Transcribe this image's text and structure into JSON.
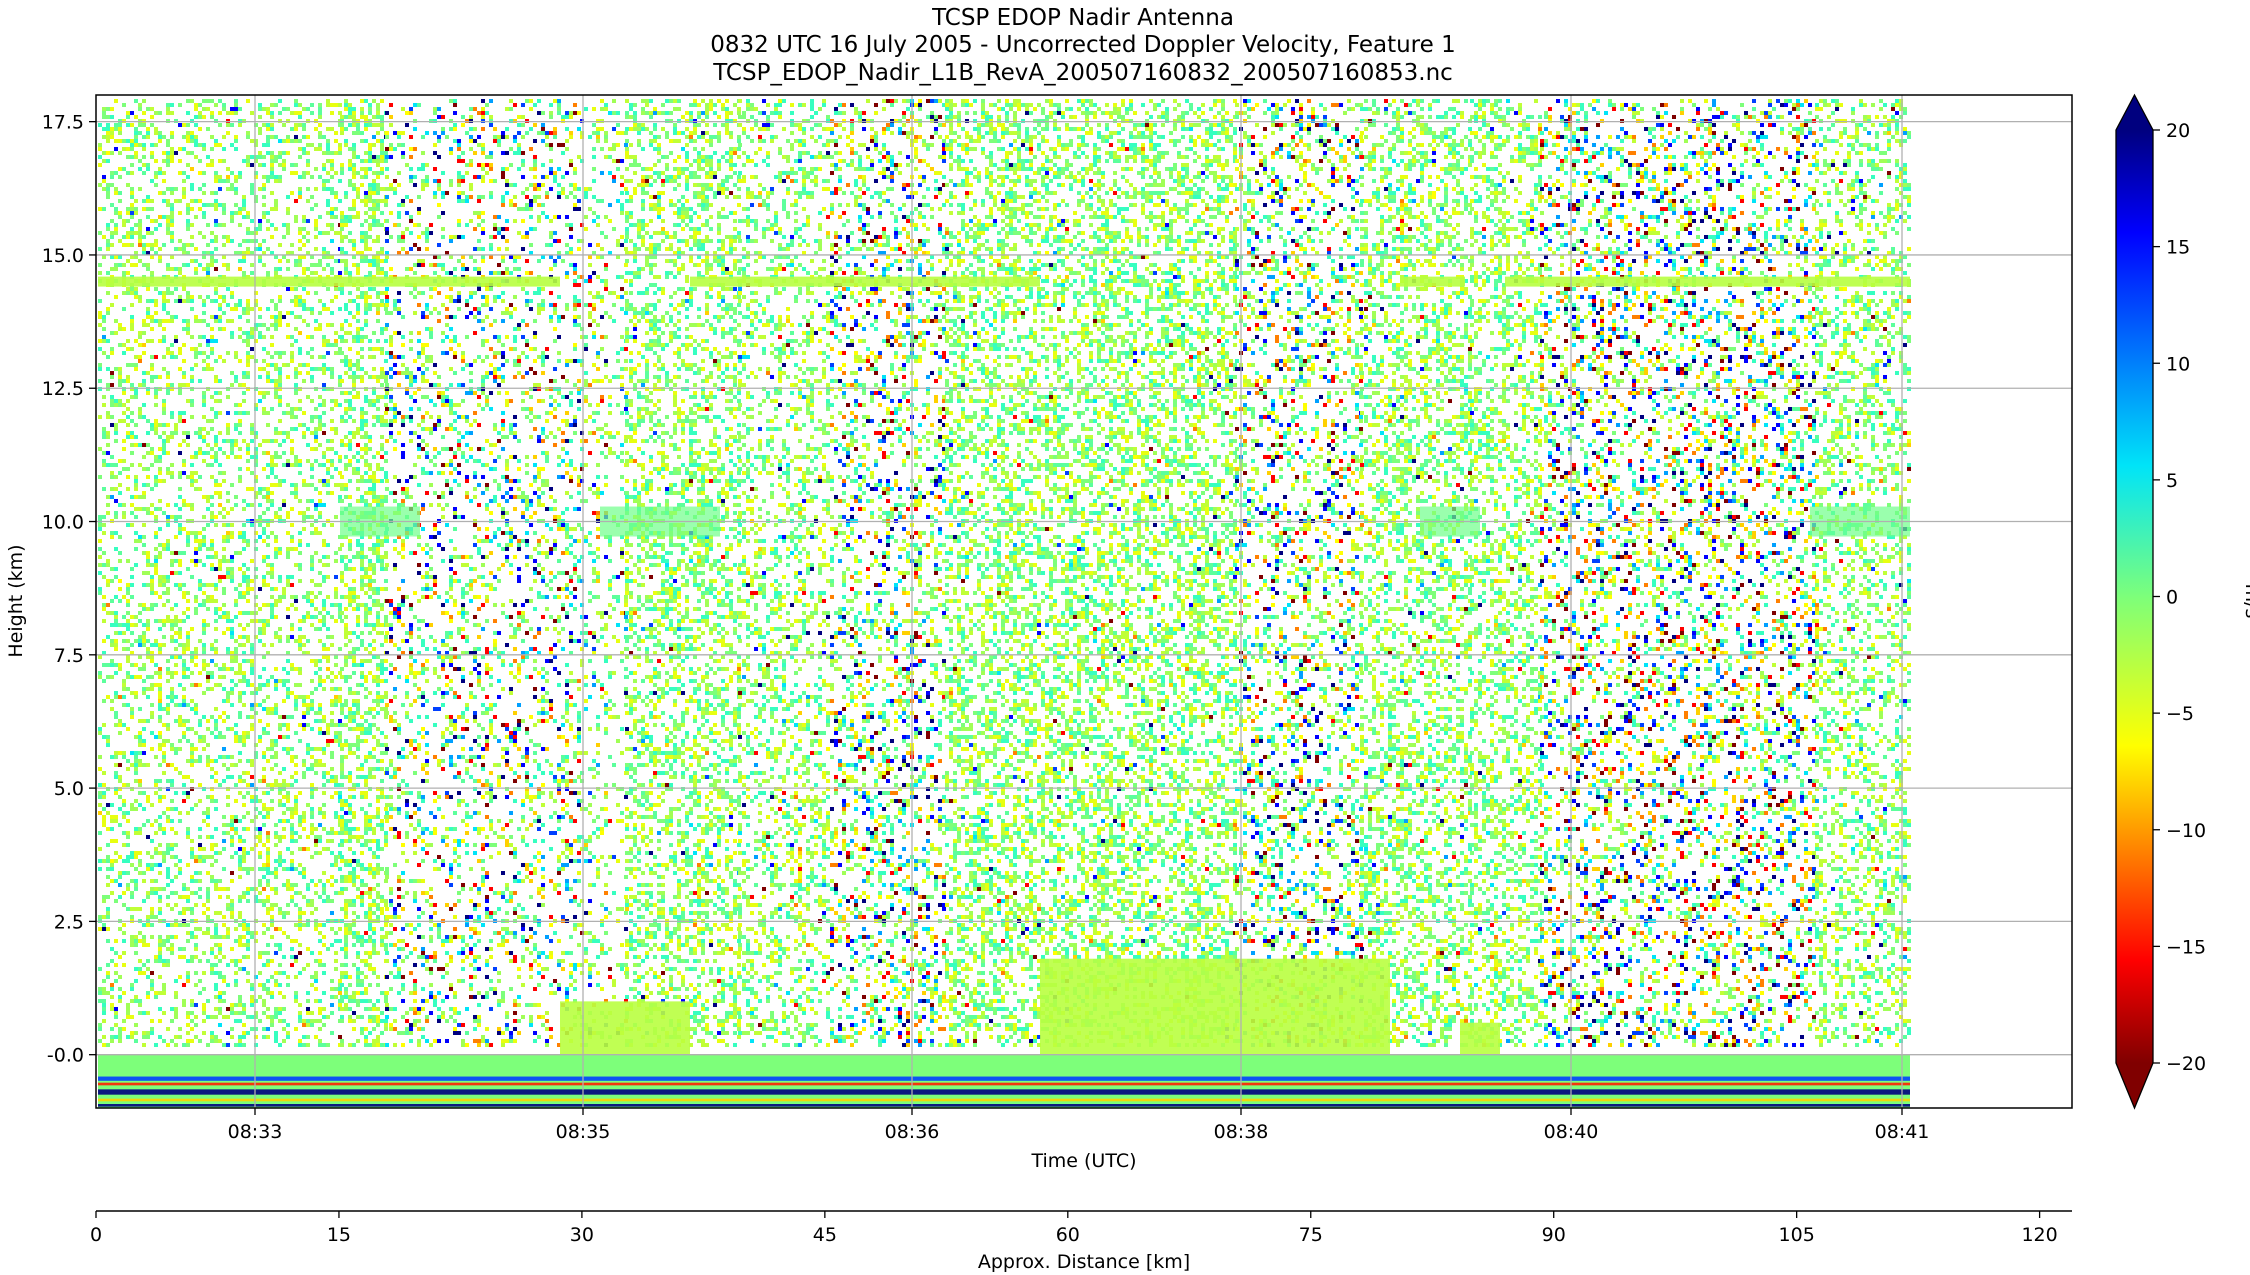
{
  "chart_data": {
    "type": "heatmap",
    "title_lines": [
      "TCSP EDOP Nadir Antenna",
      "0832 UTC 16 July 2005 - Uncorrected Doppler Velocity, Feature 1",
      "TCSP_EDOP_Nadir_L1B_RevA_200507160832_200507160853.nc"
    ],
    "ylabel": "Height (km)",
    "xlabel": "Time (UTC)",
    "x2label": "Approx. Distance [km]",
    "colorbar_label": "m/s",
    "colormap": "jet_r",
    "clim": [
      -20,
      20
    ],
    "ylim": [
      -1.0,
      18.0
    ],
    "yticks": [
      "-0.0",
      "2.5",
      "5.0",
      "7.5",
      "10.0",
      "12.5",
      "15.0",
      "17.5"
    ],
    "xticks": [
      "08:33",
      "08:35",
      "08:36",
      "08:38",
      "08:40",
      "08:41"
    ],
    "x2ticks": [
      "0",
      "15",
      "30",
      "45",
      "60",
      "75",
      "90",
      "105",
      "120"
    ],
    "x2lim": [
      0,
      122
    ],
    "cbar_ticks": [
      "20",
      "15",
      "10",
      "5",
      "0",
      "−5",
      "−10",
      "−15",
      "−20"
    ],
    "grid": true,
    "features": {
      "tropopause_echo_height_km": 14.5,
      "outflow_layer_height_km": 10.0,
      "surface_echo_height_km": -0.5
    }
  }
}
